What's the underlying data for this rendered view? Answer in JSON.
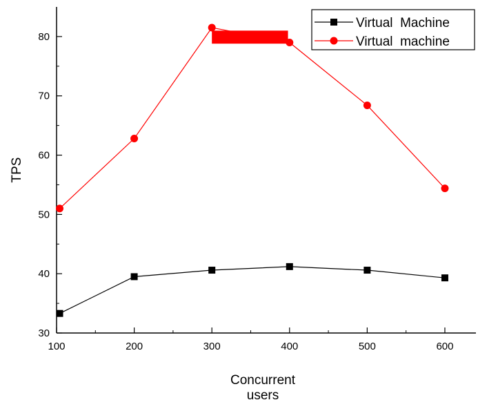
{
  "chart_data": {
    "type": "line",
    "title": "",
    "xlabel": "Concurrent users",
    "xlabel_lines": [
      "Concurrent",
      "users"
    ],
    "ylabel": "TPS",
    "xlim": [
      100,
      640
    ],
    "ylim": [
      30,
      85
    ],
    "x_ticks": [
      100,
      200,
      300,
      400,
      500,
      600
    ],
    "y_ticks": [
      30,
      40,
      50,
      60,
      70,
      80
    ],
    "grid": false,
    "legend_position": "top-right",
    "series": [
      {
        "name": "Virtual  Machine",
        "color": "#000000",
        "marker": "square",
        "x": [
          104,
          200,
          300,
          400,
          500,
          600
        ],
        "y": [
          33.3,
          39.5,
          40.6,
          41.2,
          40.6,
          39.3
        ]
      },
      {
        "name": "Virtual  machine",
        "color": "#ff0000",
        "marker": "circle",
        "x": [
          104,
          200,
          300,
          400,
          500,
          600
        ],
        "y": [
          51.0,
          62.8,
          81.5,
          79.0,
          68.4,
          54.4
        ]
      }
    ],
    "annotation_color": "#ff0000"
  }
}
